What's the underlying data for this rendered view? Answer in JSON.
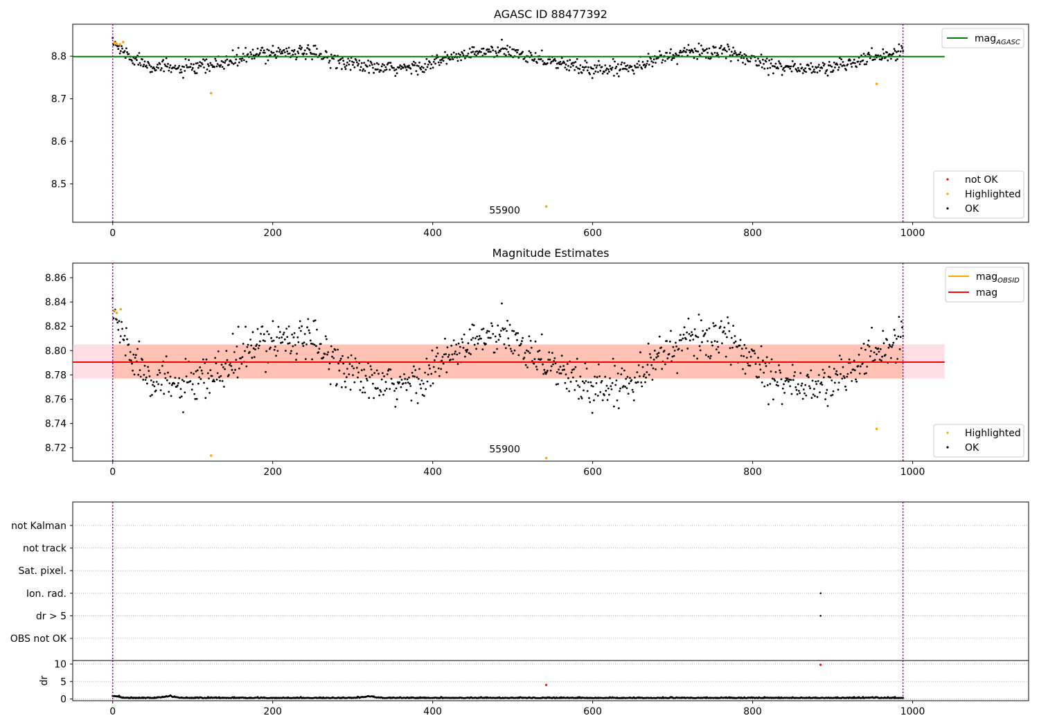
{
  "chart_data": [
    {
      "type": "scatter",
      "title": "AGASC ID 88477392",
      "xlim": [
        -50,
        1145
      ],
      "ylim": [
        8.41,
        8.875
      ],
      "xticks": [
        0,
        200,
        400,
        600,
        800,
        1000
      ],
      "yticks": [
        "8.5",
        "8.6",
        "8.7",
        "8.8"
      ],
      "annotation": {
        "text": "55900",
        "x": 490,
        "y": 8.43
      },
      "vlines": [
        0,
        988
      ],
      "vline_color": "#800080",
      "hline": {
        "name": "mag",
        "sub": "AGASC",
        "y": 8.799,
        "x": [
          -50,
          1040
        ],
        "color": "#008000"
      },
      "series": [
        {
          "name": "not OK",
          "color": "#ff0000",
          "points": []
        },
        {
          "name": "Highlighted",
          "color": "#ffa500",
          "points": [
            [
              2,
              8.832
            ],
            [
              5,
              8.829
            ],
            [
              9,
              8.828
            ],
            [
              13,
              8.833
            ],
            [
              123,
              8.713
            ],
            [
              542,
              8.447
            ],
            [
              955,
              8.735
            ]
          ]
        },
        {
          "name": "OK",
          "color": "#000000",
          "n": 988,
          "xmax": 988,
          "shape": {
            "base": 8.7905,
            "amp": 0.0205,
            "period": 262,
            "phase_x": 151,
            "noise": 0.0085,
            "start_excess": 0.035,
            "start_decay": 18
          }
        }
      ],
      "legend": {
        "position": "top-right"
      },
      "legend2": {
        "position": "bottom-right"
      }
    },
    {
      "type": "scatter",
      "title": "Magnitude Estimates",
      "xlim": [
        -50,
        1145
      ],
      "ylim": [
        8.709,
        8.872
      ],
      "xticks": [
        0,
        200,
        400,
        600,
        800,
        1000
      ],
      "yticks": [
        "8.72",
        "8.74",
        "8.76",
        "8.78",
        "8.80",
        "8.82",
        "8.84",
        "8.86"
      ],
      "annotation": {
        "text": "55900",
        "x": 490,
        "y": 8.716
      },
      "vlines": [
        0,
        988
      ],
      "vline_color": "#800080",
      "band": {
        "y0": 8.777,
        "y1": 8.805,
        "x": [
          -50,
          1040
        ],
        "color": "#ffc0cb",
        "inner_x": [
          0,
          988
        ],
        "inner_color": "#ffa07a"
      },
      "hline": {
        "name": "mag",
        "y": 8.7905,
        "x": [
          -50,
          1040
        ],
        "color": "#ff0000"
      },
      "obsid_line": {
        "name": "mag",
        "sub": "OBSID",
        "color": "#ffa500"
      },
      "series": [
        {
          "name": "Highlighted",
          "color": "#ffa500",
          "points": [
            [
              2,
              8.833
            ],
            [
              5,
              8.831
            ],
            [
              10,
              8.834
            ],
            [
              123,
              8.7135
            ],
            [
              542,
              8.7115
            ],
            [
              955,
              8.7355
            ]
          ]
        },
        {
          "name": "OK",
          "color": "#000000",
          "n": 988,
          "xmax": 988,
          "shape": {
            "base": 8.7905,
            "amp": 0.0205,
            "period": 262,
            "phase_x": 151,
            "noise": 0.0085,
            "start_excess": 0.035,
            "start_decay": 18
          }
        }
      ],
      "legend": {
        "position": "top-right"
      },
      "legend2": {
        "position": "bottom-right"
      }
    },
    {
      "type": "scatter",
      "xlim": [
        -50,
        1145
      ],
      "xticks": [
        0,
        200,
        400,
        600,
        800,
        1000
      ],
      "categories": [
        "not Kalman",
        "not track",
        "Sat. pixel.",
        "Ion. rad.",
        "dr > 5",
        "OBS not OK"
      ],
      "flag_points": [
        {
          "category": "Ion. rad.",
          "x": 885
        },
        {
          "category": "dr > 5",
          "x": 885
        }
      ],
      "vlines": [
        0,
        988
      ],
      "vline_color": "#800080"
    },
    {
      "type": "scatter",
      "ylabel": "dr",
      "xlim": [
        -50,
        1145
      ],
      "ylim": [
        -0.5,
        11
      ],
      "xticks": [
        0,
        200,
        400,
        600,
        800,
        1000
      ],
      "yticks": [
        "0",
        "5",
        "10"
      ],
      "vlines": [
        0,
        988
      ],
      "vline_color": "#800080",
      "series": [
        {
          "name": "OK",
          "color": "#000000",
          "n": 988,
          "xmax": 988,
          "dr_base": 0.22,
          "dr_noise": 0.12,
          "bumps": [
            [
              0,
              0.55
            ],
            [
              70,
              0.45
            ],
            [
              320,
              0.4
            ]
          ]
        },
        {
          "name": "not OK",
          "color": "#ff0000",
          "points": [
            [
              542,
              4.0
            ],
            [
              885,
              9.8
            ]
          ]
        }
      ]
    }
  ]
}
